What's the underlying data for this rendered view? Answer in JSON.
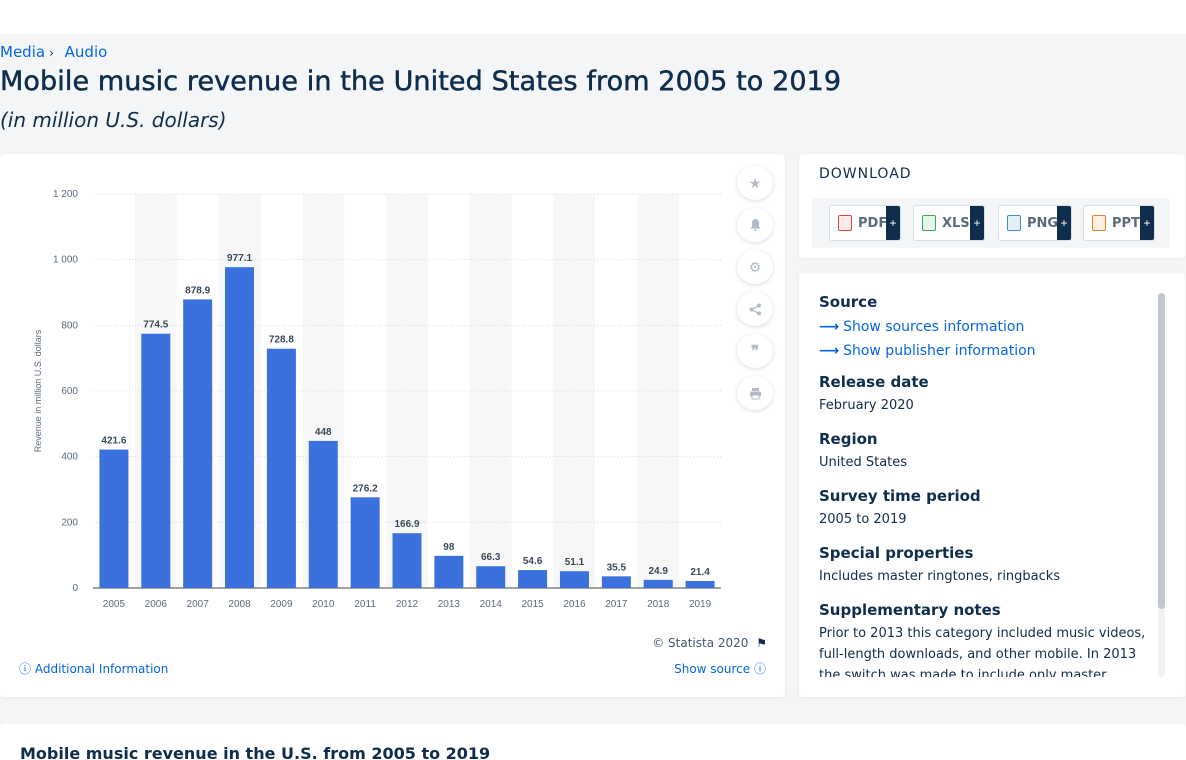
{
  "breadcrumb": {
    "items": [
      "Media",
      "Audio"
    ],
    "separator": "›"
  },
  "page": {
    "title": "Mobile music revenue in the United States from 2005 to 2019",
    "subtitle": "(in million U.S. dollars)"
  },
  "chart_data": {
    "type": "bar",
    "categories": [
      "2005",
      "2006",
      "2007",
      "2008",
      "2009",
      "2010",
      "2011",
      "2012",
      "2013",
      "2014",
      "2015",
      "2016",
      "2017",
      "2018",
      "2019"
    ],
    "values": [
      421.6,
      774.5,
      878.9,
      977.1,
      728.8,
      448,
      276.2,
      166.9,
      98,
      66.3,
      54.6,
      51.1,
      35.5,
      24.9,
      21.4
    ],
    "value_labels": [
      "421.6",
      "774.5",
      "878.9",
      "977.1",
      "728.8",
      "448",
      "276.2",
      "166.9",
      "98",
      "66.3",
      "54.6",
      "51.1",
      "35.5",
      "24.9",
      "21.4"
    ],
    "ylabel": "Revenue in million U.S. dollars",
    "xlabel": "",
    "ylim": [
      0,
      1200
    ],
    "yticks": [
      0,
      200,
      400,
      600,
      800,
      1000,
      1200
    ],
    "ytick_labels": [
      "0",
      "200",
      "400",
      "600",
      "800",
      "1 000",
      "1 200"
    ],
    "grid": true,
    "bar_color": "#3a71dc",
    "column_band_color": "#f7f7f8"
  },
  "chart_footer": {
    "copyright": "© Statista 2020",
    "additional_info": "Additional Information",
    "show_source": "Show source"
  },
  "tools": [
    "star-icon",
    "bell-icon",
    "gear-icon",
    "share-icon",
    "quote-icon",
    "print-icon"
  ],
  "download": {
    "title": "DOWNLOAD",
    "buttons": [
      {
        "label": "PDF",
        "color": "#e04646"
      },
      {
        "label": "XLS",
        "color": "#3aa85a"
      },
      {
        "label": "PNG",
        "color": "#3b8ad8"
      },
      {
        "label": "PPT",
        "color": "#e0822e"
      }
    ],
    "plus": "+"
  },
  "info": {
    "source_heading": "Source",
    "show_sources": "Show sources information",
    "show_publisher": "Show publisher information",
    "release_heading": "Release date",
    "release_value": "February 2020",
    "region_heading": "Region",
    "region_value": "United States",
    "period_heading": "Survey time period",
    "period_value": "2005 to 2019",
    "special_heading": "Special properties",
    "special_value": "Includes master ringtones, ringbacks",
    "notes_heading": "Supplementary notes",
    "notes_value": "Prior to 2013 this category included music videos, full-length downloads, and other mobile. In 2013 the switch was made to include only master"
  },
  "bottom": {
    "title": "Mobile music revenue in the U.S. from 2005 to 2019"
  },
  "colors": {
    "accent": "#0666e5",
    "text": "#0f2d4d"
  }
}
